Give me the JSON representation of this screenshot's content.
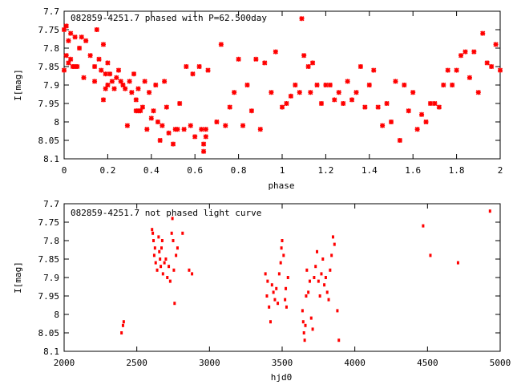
{
  "colors": {
    "points": "#ff0000",
    "axes": "#000000",
    "background": "#ffffff"
  },
  "chart_data": [
    {
      "type": "scatter",
      "title": "082859-4251.7 phased with P=62.500day",
      "xlabel": "phase",
      "ylabel": "I[mag]",
      "xlim": [
        0,
        2
      ],
      "ylim": [
        7.7,
        8.1
      ],
      "y_inverted": true,
      "grid": false,
      "xticks": [
        0,
        0.2,
        0.4,
        0.6,
        0.8,
        1,
        1.2,
        1.4,
        1.6,
        1.8,
        2
      ],
      "xtick_labels": [
        "0",
        "0.2",
        "0.4",
        "0.6",
        "0.8",
        "1",
        "1.2",
        "1.4",
        "1.6",
        "1.8",
        "2"
      ],
      "yticks": [
        7.7,
        7.75,
        7.8,
        7.85,
        7.9,
        7.95,
        8,
        8.05,
        8.1
      ],
      "ytick_labels": [
        "7.7",
        "7.75",
        "7.8",
        "7.85",
        "7.9",
        "7.95",
        "8",
        "8.05",
        "8.1"
      ],
      "series": [
        {
          "x": [
            0.0,
            0.0,
            0.01,
            0.01,
            0.02,
            0.02,
            0.03,
            0.03,
            0.04,
            0.05,
            0.05,
            0.06,
            0.07,
            0.08,
            0.09,
            0.1,
            0.12,
            0.14,
            0.14,
            0.15,
            0.16,
            0.17,
            0.18,
            0.18,
            0.19,
            0.19,
            0.2,
            0.2,
            0.21,
            0.22,
            0.23,
            0.24,
            0.25,
            0.26,
            0.27,
            0.28,
            0.29,
            0.3,
            0.31,
            0.32,
            0.33,
            0.33,
            0.34,
            0.34,
            0.35,
            0.36,
            0.37,
            0.38,
            0.39,
            0.4,
            0.41,
            0.42,
            0.43,
            0.44,
            0.45,
            0.46,
            0.47,
            0.48,
            0.5,
            0.51,
            0.52,
            0.53,
            0.55,
            0.56,
            0.58,
            0.59,
            0.6,
            0.62,
            0.63,
            0.64,
            0.64,
            0.65,
            0.65,
            0.66,
            0.7,
            0.72,
            0.74,
            0.76,
            0.78,
            0.8,
            0.82,
            0.84,
            0.86,
            0.88,
            0.9,
            0.92,
            0.95,
            0.97,
            1.0,
            1.02,
            1.04,
            1.06,
            1.08,
            1.09,
            1.1,
            1.12,
            1.13,
            1.14,
            1.16,
            1.18,
            1.2,
            1.22,
            1.24,
            1.26,
            1.28,
            1.3,
            1.32,
            1.34,
            1.36,
            1.38,
            1.4,
            1.42,
            1.44,
            1.46,
            1.48,
            1.5,
            1.52,
            1.54,
            1.56,
            1.58,
            1.6,
            1.62,
            1.64,
            1.66,
            1.68,
            1.7,
            1.72,
            1.74,
            1.76,
            1.78,
            1.8,
            1.82,
            1.84,
            1.86,
            1.88,
            1.9,
            1.92,
            1.94,
            1.96,
            1.98,
            2.0
          ],
          "y": [
            7.86,
            7.75,
            7.74,
            7.82,
            7.78,
            7.84,
            7.83,
            7.76,
            7.85,
            7.85,
            7.77,
            7.85,
            7.8,
            7.77,
            7.88,
            7.78,
            7.82,
            7.85,
            7.89,
            7.75,
            7.83,
            7.86,
            7.94,
            7.79,
            7.87,
            7.91,
            7.84,
            7.9,
            7.87,
            7.89,
            7.91,
            7.88,
            7.86,
            7.89,
            7.9,
            7.91,
            8.01,
            7.89,
            7.92,
            7.87,
            7.97,
            7.94,
            7.91,
            7.97,
            7.97,
            7.96,
            7.89,
            8.02,
            7.92,
            7.99,
            7.97,
            7.9,
            8.0,
            8.05,
            8.01,
            7.89,
            7.96,
            8.03,
            8.06,
            8.02,
            8.02,
            7.95,
            8.02,
            7.85,
            8.01,
            7.87,
            8.04,
            7.85,
            8.02,
            8.06,
            8.08,
            8.04,
            8.02,
            7.86,
            8.0,
            7.79,
            8.01,
            7.96,
            7.92,
            7.83,
            8.01,
            7.9,
            7.97,
            7.83,
            8.02,
            7.84,
            7.92,
            7.81,
            7.96,
            7.95,
            7.93,
            7.9,
            7.92,
            7.72,
            7.82,
            7.85,
            7.92,
            7.84,
            7.9,
            7.95,
            7.9,
            7.9,
            7.94,
            7.92,
            7.95,
            7.89,
            7.94,
            7.92,
            7.85,
            7.96,
            7.9,
            7.86,
            7.96,
            8.01,
            7.95,
            8.0,
            7.89,
            8.05,
            7.9,
            7.97,
            7.92,
            8.02,
            7.98,
            8.0,
            7.95,
            7.95,
            7.96,
            7.9,
            7.86,
            7.9,
            7.86,
            7.82,
            7.81,
            7.88,
            7.81,
            7.92,
            7.76,
            7.84,
            7.85,
            7.79,
            7.86
          ],
          "marker": "plus"
        }
      ]
    },
    {
      "type": "scatter",
      "title": "082859-4251.7 not phased light curve",
      "xlabel": "hjd0",
      "ylabel": "I[mag]",
      "xlim": [
        2000,
        5000
      ],
      "ylim": [
        7.7,
        8.1
      ],
      "y_inverted": true,
      "grid": false,
      "xticks": [
        2000,
        2500,
        3000,
        3500,
        4000,
        4500,
        5000
      ],
      "xtick_labels": [
        "2000",
        "2500",
        "3000",
        "3500",
        "4000",
        "4500",
        "5000"
      ],
      "yticks": [
        7.7,
        7.75,
        7.8,
        7.85,
        7.9,
        7.95,
        8,
        8.05,
        8.1
      ],
      "ytick_labels": [
        "7.7",
        "7.75",
        "7.8",
        "7.85",
        "7.9",
        "7.95",
        "8",
        "8.05",
        "8.1"
      ],
      "series": [
        {
          "x": [
            2395,
            2405,
            2410,
            2605,
            2610,
            2615,
            2620,
            2625,
            2630,
            2640,
            2650,
            2655,
            2660,
            2665,
            2670,
            2675,
            2680,
            2690,
            2700,
            2710,
            2720,
            2730,
            2740,
            2745,
            2750,
            2755,
            2760,
            2770,
            2780,
            2815,
            2860,
            2880,
            3385,
            3395,
            3400,
            3410,
            3420,
            3430,
            3440,
            3450,
            3460,
            3470,
            3480,
            3490,
            3495,
            3500,
            3510,
            3520,
            3525,
            3530,
            3540,
            3640,
            3645,
            3650,
            3655,
            3660,
            3665,
            3670,
            3680,
            3690,
            3700,
            3710,
            3720,
            3730,
            3740,
            3750,
            3760,
            3770,
            3780,
            3790,
            3800,
            3810,
            3820,
            3830,
            3840,
            3850,
            3860,
            3880,
            3890,
            4470,
            4520,
            4710,
            4930
          ],
          "y": [
            8.05,
            8.03,
            8.02,
            7.77,
            7.78,
            7.8,
            7.84,
            7.82,
            7.86,
            7.88,
            7.79,
            7.83,
            7.85,
            7.87,
            7.82,
            7.8,
            7.89,
            7.86,
            7.85,
            7.9,
            7.87,
            7.91,
            7.78,
            7.74,
            7.8,
            7.88,
            7.97,
            7.84,
            7.82,
            7.78,
            7.88,
            7.89,
            7.89,
            7.95,
            7.91,
            7.98,
            8.02,
            7.92,
            7.94,
            7.96,
            7.93,
            7.97,
            7.89,
            7.86,
            7.82,
            7.8,
            7.84,
            7.96,
            7.93,
            7.98,
            7.9,
            7.99,
            8.02,
            8.05,
            8.07,
            8.03,
            7.95,
            7.88,
            7.94,
            7.91,
            8.01,
            8.04,
            7.9,
            7.87,
            7.83,
            7.91,
            7.95,
            7.89,
            7.85,
            7.92,
            7.9,
            7.94,
            7.96,
            7.88,
            7.84,
            7.79,
            7.81,
            7.99,
            8.07,
            7.76,
            7.84,
            7.86,
            7.72
          ],
          "marker": "dot"
        }
      ]
    }
  ]
}
